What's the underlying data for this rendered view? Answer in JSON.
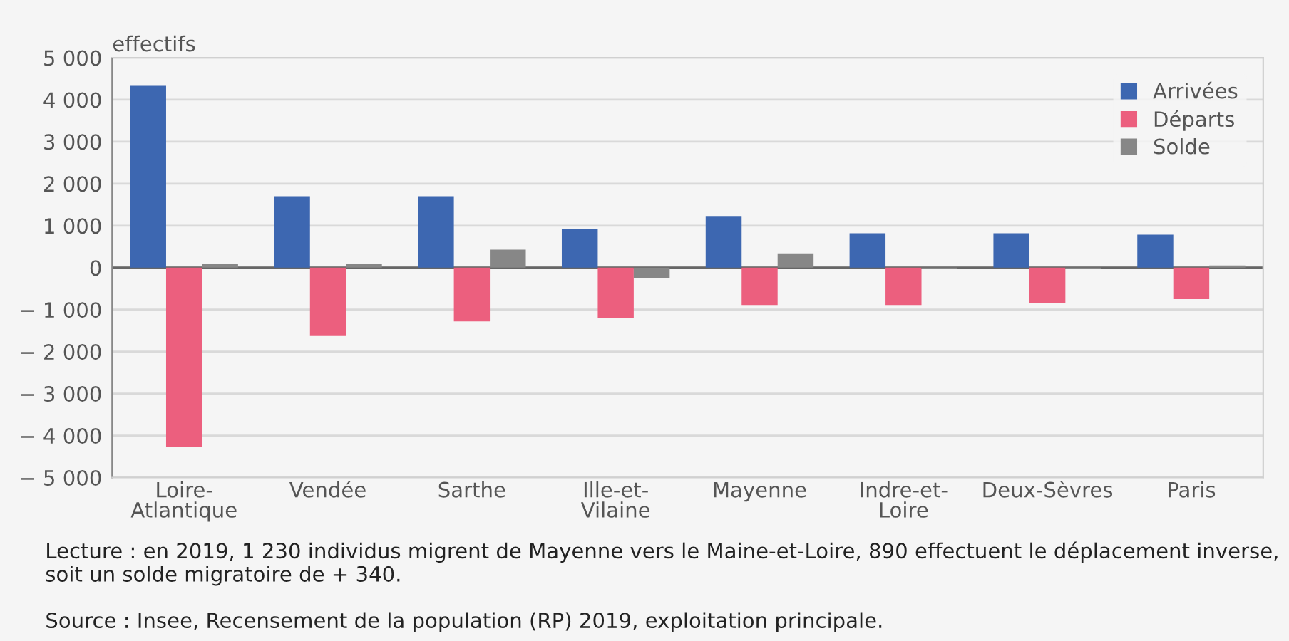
{
  "chart_data": {
    "type": "bar",
    "ylabel": "effectifs",
    "categories": [
      "Loire-\nAtlantique",
      "Vendée",
      "Sarthe",
      "Ille-et-\nVilaine",
      "Mayenne",
      "Indre-et-\nLoire",
      "Deux-Sèvres",
      "Paris"
    ],
    "series": [
      {
        "name": "Arrivées",
        "color": "#3d67b1",
        "values": [
          4330,
          1700,
          1700,
          930,
          1230,
          820,
          820,
          785
        ]
      },
      {
        "name": "Départs",
        "color": "#ec5f7e",
        "values": [
          -4260,
          -1630,
          -1280,
          -1210,
          -890,
          -890,
          -850,
          -750
        ]
      },
      {
        "name": "Solde",
        "color": "#878787",
        "values": [
          80,
          80,
          430,
          -260,
          340,
          -20,
          -20,
          50
        ]
      }
    ],
    "ylim": [
      -5000,
      5000
    ],
    "yticks": [
      {
        "value": -5000,
        "label": "− 5 000"
      },
      {
        "value": -4000,
        "label": "− 4 000"
      },
      {
        "value": -3000,
        "label": "− 3 000"
      },
      {
        "value": -2000,
        "label": "− 2 000"
      },
      {
        "value": -1000,
        "label": "− 1 000"
      },
      0,
      {
        "value": 1000,
        "label": "1 000"
      },
      {
        "value": 2000,
        "label": "2 000"
      },
      {
        "value": 3000,
        "label": "3 000"
      },
      {
        "value": 4000,
        "label": "4 000"
      },
      {
        "value": 5000,
        "label": "5 000"
      }
    ],
    "grid": "y",
    "legend": "top right",
    "annotations": [
      "Lecture : en 2019, 1 230 individus migrent de Mayenne vers le Maine-et-Loire, 890 effectuent le déplacement inverse, soit un solde migratoire de + 340.",
      "Source : Insee, Recensement de la population (RP) 2019, exploitation principale."
    ]
  }
}
